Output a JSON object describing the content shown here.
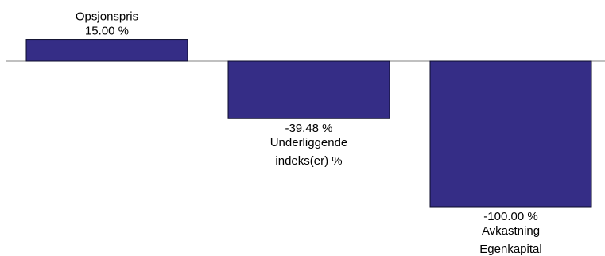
{
  "chart_data": {
    "type": "bar",
    "categories": [
      "Opsjonspris",
      "Underliggende indeks(er) %",
      "Avkastning Egenkapital"
    ],
    "values": [
      15.0,
      -39.48,
      -100.0
    ],
    "value_labels": [
      "15.00 %",
      "-39.48 %",
      "-100.00 %"
    ],
    "category_label_lines": [
      [
        "Opsjonspris"
      ],
      [
        "Underliggende",
        "indeks(er) %"
      ],
      [
        "Avkastning",
        "Egenkapital"
      ]
    ],
    "unit": "%",
    "title": "",
    "xlabel": "",
    "ylabel": "",
    "ylim": [
      -100,
      15
    ],
    "grid": false,
    "legend": "none",
    "axes_visible": false,
    "baseline": 0
  },
  "colors": {
    "bar_fill": "#352d86",
    "bar_stroke": "#0a0a2a",
    "baseline": "#808080",
    "text": "#000000"
  }
}
